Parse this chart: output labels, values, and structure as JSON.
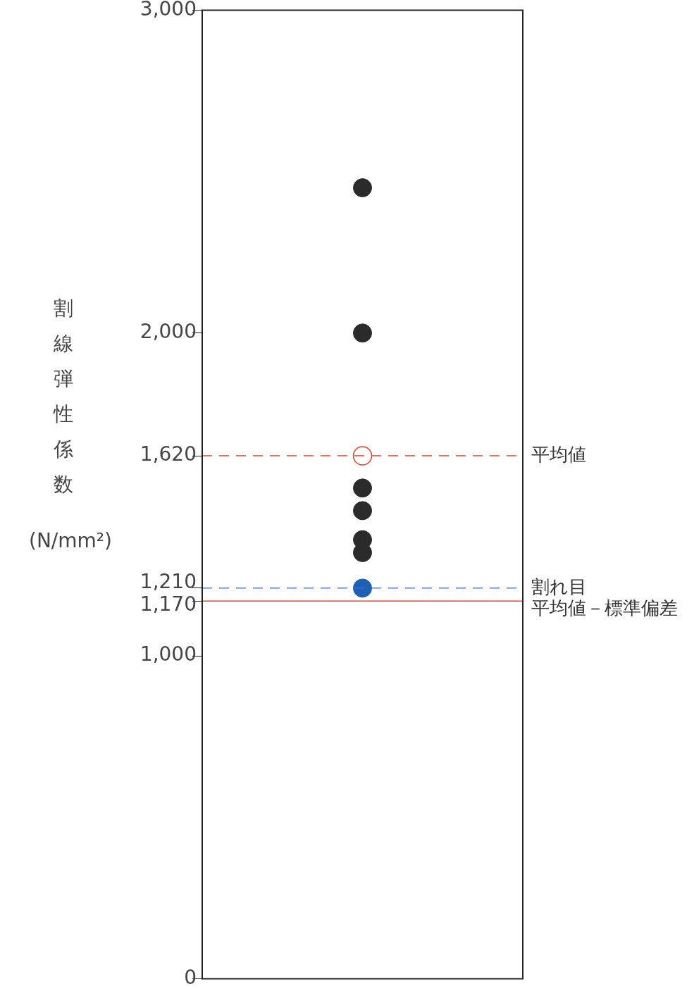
{
  "chart_data": {
    "type": "scatter",
    "ylabel": "割線弾性係数 (N/mm²)",
    "categories": [
      null
    ],
    "series": [
      {
        "color": "#2b2b2b",
        "values": [
          2450
        ]
      },
      {
        "color": "#2b2b2b",
        "values": [
          2000
        ]
      },
      {
        "color": "#2b2b2b",
        "values": [
          1520
        ]
      },
      {
        "color": "#2b2b2b",
        "values": [
          1450
        ]
      },
      {
        "color": "#2b2b2b",
        "values": [
          1360
        ]
      },
      {
        "color": "#2b2b2b",
        "values": [
          1320
        ]
      },
      {
        "color": "#1f5fb4",
        "values": [
          1210
        ]
      },
      {
        "color": "#e8402a",
        "values": [
          1620
        ]
      }
    ],
    "ylim": [
      0,
      3000
    ],
    "yticks": [
      0,
      {
        "value": 1000,
        "label": "1,000"
      },
      {
        "value": 1170,
        "label": "1,170"
      },
      {
        "value": 1210,
        "label": "1,210"
      },
      {
        "value": 1620,
        "label": "1,620"
      },
      {
        "value": 2000,
        "label": "2,000"
      },
      {
        "value": 3000,
        "label": "3,000"
      }
    ],
    "ref_lines": [
      {
        "axis": "y",
        "value": 1620,
        "label": "平均値",
        "color": "#e8402a",
        "line_style": "dashed"
      },
      {
        "axis": "y",
        "value": 1210,
        "label": "割れ目",
        "color": "#3a6fd0",
        "line_style": "dashed"
      },
      {
        "axis": "y",
        "value": 1170,
        "label": "平均値－標準偏差",
        "color": "#e8402a",
        "line_style": "solid"
      }
    ],
    "tick_labels": "y",
    "grid": false,
    "legend": false,
    "marker": "circle"
  }
}
